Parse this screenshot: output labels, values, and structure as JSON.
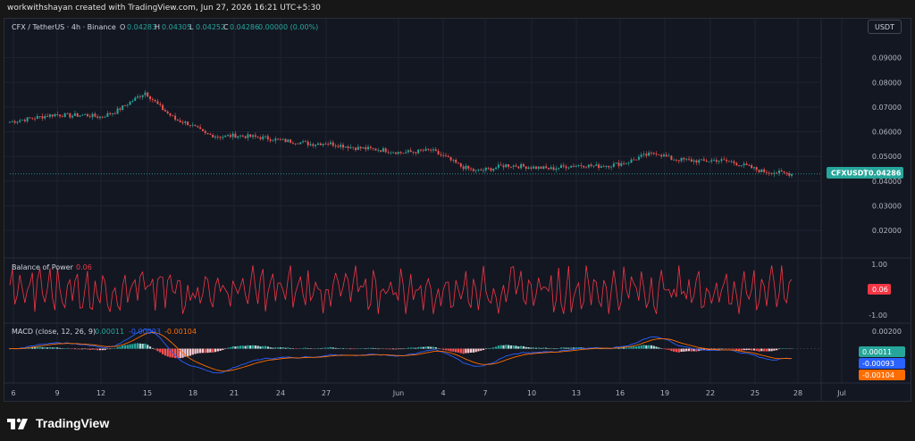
{
  "credit": "workwithshayan created with TradingView.com, Jun 27, 2026 16:21 UTC+5:30",
  "header": {
    "symbol": "CFX / TetherUS · 4h · Binance",
    "o_label": "O",
    "o": "0.04283",
    "h_label": "H",
    "h": "0.04305",
    "l_label": "L",
    "l": "0.04252",
    "c_label": "C",
    "c": "0.04286",
    "change": "0.00000 (0.00%)"
  },
  "currency_button": "USDT",
  "price_tag": {
    "symbol": "CFXUSDT",
    "value": "0.04286"
  },
  "bop": {
    "label": "Balance of Power",
    "value": "0.06",
    "tag": "0.06"
  },
  "macd": {
    "label": "MACD (close, 12, 26, 9)",
    "hist_value": "0.00011",
    "macd_value": "-0.00093",
    "signal_value": "-0.00104",
    "tags": [
      "0.00011",
      "-0.00093",
      "-0.00104"
    ]
  },
  "brand": "TradingView",
  "colors": {
    "up": "#26a69a",
    "down": "#ef5350",
    "bop": "#f23645",
    "macd": "#2962ff",
    "signal": "#ff6d00"
  },
  "chart_data": [
    {
      "type": "candlestick",
      "title": "CFX / TetherUS · 4h · Binance",
      "x_tick_labels": [
        "6",
        "9",
        "12",
        "15",
        "18",
        "21",
        "24",
        "27",
        "Jun",
        "4",
        "7",
        "10",
        "13",
        "16",
        "19",
        "22",
        "25",
        "28",
        "Jul"
      ],
      "y_tick_labels": [
        "0.09000",
        "0.08000",
        "0.07000",
        "0.06000",
        "0.05000",
        "0.04000",
        "0.03000",
        "0.02000"
      ],
      "ylim": [
        0.011,
        0.1
      ],
      "series": [
        {
          "name": "close (approx. daily)",
          "x": [
            "May 6",
            "May 7",
            "May 8",
            "May 9",
            "May 10",
            "May 11",
            "May 12",
            "May 13",
            "May 14",
            "May 15",
            "May 16",
            "May 17",
            "May 18",
            "May 19",
            "May 20",
            "May 21",
            "May 22",
            "May 23",
            "May 24",
            "May 25",
            "May 26",
            "May 27",
            "May 28",
            "May 29",
            "May 30",
            "May 31",
            "Jun 1",
            "Jun 2",
            "Jun 3",
            "Jun 4",
            "Jun 5",
            "Jun 6",
            "Jun 7",
            "Jun 8",
            "Jun 9",
            "Jun 10",
            "Jun 11",
            "Jun 12",
            "Jun 13",
            "Jun 14",
            "Jun 15",
            "Jun 16",
            "Jun 17",
            "Jun 18",
            "Jun 19",
            "Jun 20",
            "Jun 21",
            "Jun 22",
            "Jun 23",
            "Jun 24",
            "Jun 25",
            "Jun 26",
            "Jun 27"
          ],
          "values": [
            0.064,
            0.065,
            0.066,
            0.067,
            0.0665,
            0.0668,
            0.066,
            0.068,
            0.072,
            0.076,
            0.07,
            0.065,
            0.063,
            0.059,
            0.058,
            0.0585,
            0.058,
            0.0575,
            0.0565,
            0.056,
            0.055,
            0.0555,
            0.0545,
            0.0535,
            0.053,
            0.0525,
            0.0515,
            0.052,
            0.0525,
            0.0495,
            0.046,
            0.044,
            0.045,
            0.0465,
            0.046,
            0.0455,
            0.045,
            0.046,
            0.0465,
            0.046,
            0.0465,
            0.0475,
            0.05,
            0.0515,
            0.049,
            0.0485,
            0.048,
            0.0485,
            0.0478,
            0.046,
            0.044,
            0.0435,
            0.0429
          ]
        }
      ]
    },
    {
      "type": "line",
      "title": "Balance of Power",
      "y_tick_labels": [
        "1.00",
        "-1.00"
      ],
      "ylim": [
        -1.1,
        1.1
      ],
      "series": [
        {
          "name": "Balance of Power",
          "last_value": 0.06
        }
      ]
    },
    {
      "type": "line",
      "title": "MACD (close, 12, 26, 9)",
      "y_tick_labels": [
        "0.00200"
      ],
      "ylim": [
        -0.0035,
        0.0025
      ],
      "series": [
        {
          "name": "Histogram",
          "last_value": 0.00011
        },
        {
          "name": "MACD",
          "last_value": -0.00093
        },
        {
          "name": "Signal",
          "last_value": -0.00104
        }
      ]
    }
  ]
}
